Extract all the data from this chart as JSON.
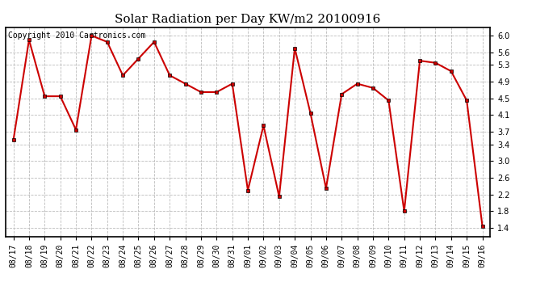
{
  "title": "Solar Radiation per Day KW/m2 20100916",
  "copyright_text": "Copyright 2010 Cartronics.com",
  "dates": [
    "08/17",
    "08/18",
    "08/19",
    "08/20",
    "08/21",
    "08/22",
    "08/23",
    "08/24",
    "08/25",
    "08/26",
    "08/27",
    "08/28",
    "08/29",
    "08/30",
    "08/31",
    "09/01",
    "09/02",
    "09/03",
    "09/04",
    "09/05",
    "09/06",
    "09/07",
    "09/08",
    "09/09",
    "09/10",
    "09/11",
    "09/12",
    "09/13",
    "09/14",
    "09/15",
    "09/16"
  ],
  "values": [
    3.5,
    5.9,
    4.55,
    4.55,
    3.75,
    6.0,
    5.85,
    5.05,
    5.45,
    5.85,
    5.05,
    4.85,
    4.65,
    4.65,
    4.85,
    2.3,
    3.85,
    2.15,
    5.7,
    4.15,
    2.35,
    4.6,
    4.85,
    4.75,
    4.45,
    1.8,
    5.4,
    5.35,
    5.15,
    4.45,
    1.45
  ],
  "line_color": "#cc0000",
  "marker_color": "#000000",
  "marker_size": 3,
  "line_width": 1.5,
  "ylim": [
    1.2,
    6.2
  ],
  "yticks": [
    1.4,
    1.8,
    2.2,
    2.6,
    3.0,
    3.4,
    3.7,
    4.1,
    4.5,
    4.9,
    5.3,
    5.6,
    6.0
  ],
  "grid_color": "#bbbbbb",
  "bg_color": "#ffffff",
  "title_fontsize": 11,
  "copyright_fontsize": 7,
  "tick_fontsize": 7,
  "axis_label_color": "#000000",
  "fig_width": 6.9,
  "fig_height": 3.75,
  "dpi": 100
}
